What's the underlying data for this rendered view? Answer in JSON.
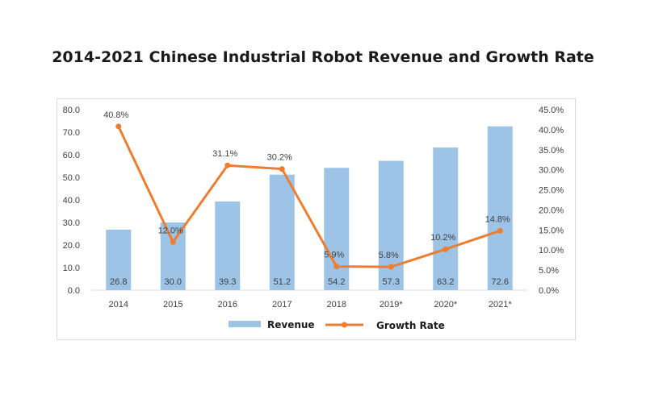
{
  "chart_data": {
    "type": "bar+line",
    "title": "2014-2021 Chinese Industrial Robot Revenue and Growth Rate",
    "categories": [
      "2014",
      "2015",
      "2016",
      "2017",
      "2018",
      "2019*",
      "2020*",
      "2021*"
    ],
    "series": [
      {
        "name": "Revenue",
        "type": "bar",
        "axis": "left",
        "color": "#9dc3e6",
        "values": [
          26.8,
          30.0,
          39.3,
          51.2,
          54.2,
          57.3,
          63.2,
          72.6
        ],
        "labels": [
          "26.8",
          "30.0",
          "39.3",
          "51.2",
          "54.2",
          "57.3",
          "63.2",
          "72.6"
        ]
      },
      {
        "name": "Growth Rate",
        "type": "line",
        "axis": "right",
        "color": "#ed7d31",
        "values": [
          40.8,
          12.0,
          31.1,
          30.2,
          5.9,
          5.8,
          10.2,
          14.8
        ],
        "labels": [
          "40.8%",
          "12.0%",
          "31.1%",
          "30.2%",
          "5.9%",
          "5.8%",
          "10.2%",
          "14.8%"
        ]
      }
    ],
    "y_left": {
      "min": 0,
      "max": 80,
      "step": 10,
      "ticks": [
        "0.0",
        "10.0",
        "20.0",
        "30.0",
        "40.0",
        "50.0",
        "60.0",
        "70.0",
        "80.0"
      ]
    },
    "y_right": {
      "min": 0,
      "max": 45,
      "step": 5,
      "ticks": [
        "0.0%",
        "5.0%",
        "10.0%",
        "15.0%",
        "20.0%",
        "25.0%",
        "30.0%",
        "35.0%",
        "40.0%",
        "45.0%"
      ]
    },
    "grid": false,
    "legend": {
      "position": "bottom"
    }
  }
}
